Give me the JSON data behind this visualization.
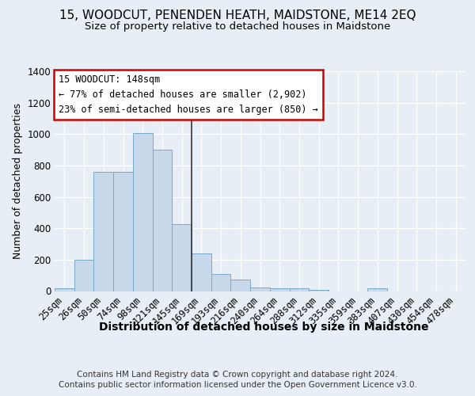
{
  "title": "15, WOODCUT, PENENDEN HEATH, MAIDSTONE, ME14 2EQ",
  "subtitle": "Size of property relative to detached houses in Maidstone",
  "xlabel": "Distribution of detached houses by size in Maidstone",
  "ylabel": "Number of detached properties",
  "footer_line1": "Contains HM Land Registry data © Crown copyright and database right 2024.",
  "footer_line2": "Contains public sector information licensed under the Open Government Licence v3.0.",
  "categories": [
    "25sqm",
    "26sqm",
    "50sqm",
    "74sqm",
    "98sqm",
    "121sqm",
    "145sqm",
    "169sqm",
    "193sqm",
    "216sqm",
    "240sqm",
    "264sqm",
    "288sqm",
    "312sqm",
    "335sqm",
    "359sqm",
    "383sqm",
    "407sqm",
    "430sqm",
    "454sqm",
    "478sqm"
  ],
  "values": [
    20,
    200,
    760,
    760,
    1005,
    900,
    425,
    240,
    110,
    75,
    25,
    20,
    20,
    10,
    0,
    0,
    20,
    0,
    0,
    0,
    0
  ],
  "bar_color": "#c8d8eb",
  "bar_edge_color": "#7aaac8",
  "highlight_line_color": "#333333",
  "highlight_bar_index": 6,
  "ylim": [
    0,
    1400
  ],
  "yticks": [
    0,
    200,
    400,
    600,
    800,
    1000,
    1200,
    1400
  ],
  "annotation_title": "15 WOODCUT: 148sqm",
  "annotation_line2": "← 77% of detached houses are smaller (2,902)",
  "annotation_line3": "23% of semi-detached houses are larger (850) →",
  "annotation_box_color": "#ffffff",
  "annotation_box_edge": "#cc0000",
  "bg_color": "#e8eef5",
  "plot_bg_color": "#e8eef5",
  "grid_color": "#ffffff",
  "title_fontsize": 11,
  "subtitle_fontsize": 9.5,
  "xlabel_fontsize": 10,
  "ylabel_fontsize": 9,
  "tick_fontsize": 8.5,
  "footer_fontsize": 7.5
}
